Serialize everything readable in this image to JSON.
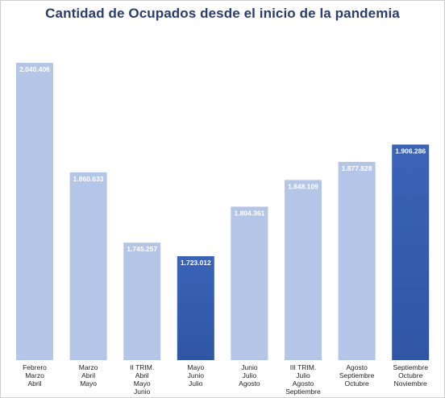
{
  "chart_data": {
    "type": "bar",
    "title": "Cantidad de Ocupados desde el inicio de la pandemia",
    "xlabel": "",
    "ylabel": "",
    "grid": false,
    "legend": "none",
    "categories": [
      [
        "Febrero",
        "Marzo",
        "Abril"
      ],
      [
        "Marzo",
        "Abril",
        "Mayo"
      ],
      [
        "II TRIM.",
        "Abril",
        "Mayo",
        "Junio"
      ],
      [
        "Mayo",
        "Junio",
        "Julio"
      ],
      [
        "Junio",
        "Julio",
        "Agosto"
      ],
      [
        "III TRIM.",
        "Julio",
        "Agosto",
        "Septiembre"
      ],
      [
        "Agosto",
        "Septiembre",
        "Octubre"
      ],
      [
        "Septiembre",
        "Octubre",
        "Noviembre"
      ]
    ],
    "values": [
      2040406,
      1860633,
      1745257,
      1723012,
      1804361,
      1848109,
      1877828,
      1906286
    ],
    "value_labels": [
      "2.040.406",
      "1.860.633",
      "1.745.257",
      "1.723.012",
      "1.804.361",
      "1.848.109",
      "1.877.828",
      "1.906.286"
    ],
    "highlight": [
      false,
      false,
      false,
      true,
      false,
      false,
      false,
      true
    ],
    "colors": {
      "bar": "#b4c6e7",
      "bar_highlight": "#3a63b8",
      "bar_highlight_dark": "#2f55a4",
      "title": "#2a3d6b"
    }
  }
}
